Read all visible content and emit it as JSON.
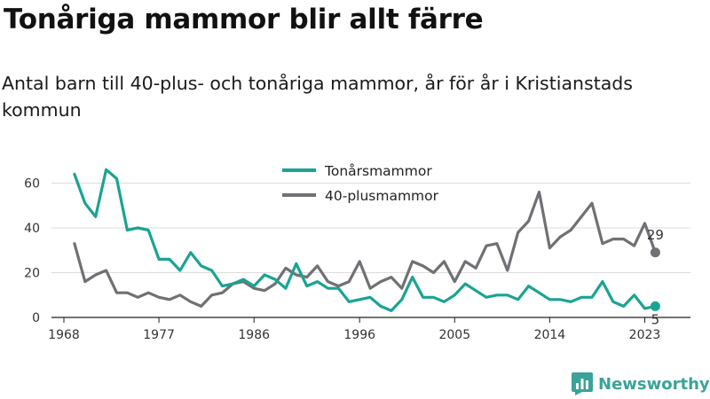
{
  "title": "Tonåriga mammor blir allt färre",
  "subtitle": "Antal barn till 40-plus- och tonåriga mammor, år för år i Kristianstads kommun",
  "brand": {
    "name": "Newsworthy",
    "icon": "bar-chart-icon",
    "color": "#3aa39a"
  },
  "chart_data": {
    "type": "line",
    "x": [
      1969,
      1970,
      1971,
      1972,
      1973,
      1974,
      1975,
      1976,
      1977,
      1978,
      1979,
      1980,
      1981,
      1982,
      1983,
      1984,
      1985,
      1986,
      1987,
      1988,
      1989,
      1990,
      1991,
      1992,
      1993,
      1994,
      1995,
      1996,
      1997,
      1998,
      1999,
      2000,
      2001,
      2002,
      2003,
      2004,
      2005,
      2006,
      2007,
      2008,
      2009,
      2010,
      2011,
      2012,
      2013,
      2014,
      2015,
      2016,
      2017,
      2018,
      2019,
      2020,
      2021,
      2022,
      2023,
      2024
    ],
    "series": [
      {
        "name": "Tonårsmammor",
        "color": "#1aa393",
        "values": [
          64,
          51,
          45,
          66,
          62,
          39,
          40,
          39,
          26,
          26,
          21,
          29,
          23,
          21,
          14,
          15,
          17,
          14,
          19,
          17,
          13,
          24,
          14,
          16,
          13,
          13,
          7,
          8,
          9,
          5,
          3,
          8,
          18,
          9,
          9,
          7,
          10,
          15,
          12,
          9,
          10,
          10,
          8,
          14,
          11,
          8,
          8,
          7,
          9,
          9,
          16,
          7,
          5,
          10,
          4,
          5
        ]
      },
      {
        "name": "40-plusmammor",
        "color": "#707075",
        "values": [
          33,
          16,
          19,
          21,
          11,
          11,
          9,
          11,
          9,
          8,
          10,
          7,
          5,
          10,
          11,
          15,
          16,
          13,
          12,
          15,
          22,
          19,
          18,
          23,
          16,
          14,
          16,
          25,
          13,
          16,
          18,
          13,
          25,
          23,
          20,
          25,
          16,
          25,
          22,
          32,
          33,
          21,
          38,
          43,
          56,
          31,
          36,
          39,
          45,
          51,
          33,
          35,
          35,
          32,
          42,
          29
        ]
      }
    ],
    "xticks": [
      "1968",
      "1977",
      "1986",
      "1996",
      "2005",
      "2014",
      "2023"
    ],
    "yticks": [
      0,
      20,
      40,
      60
    ],
    "ylim": [
      0,
      70
    ],
    "end_labels": [
      "29",
      "5"
    ],
    "grid": true,
    "legend": "top-center"
  }
}
